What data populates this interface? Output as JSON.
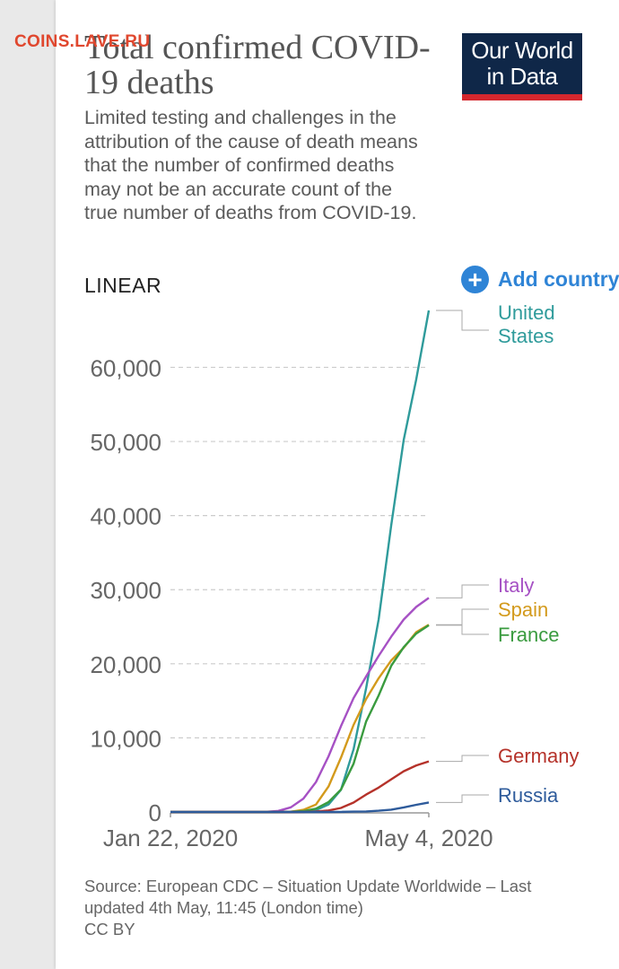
{
  "watermark": "COINS.LAVE.RU",
  "title": "Total confirmed COVID-19 deaths",
  "subtitle": "Limited testing and challenges in the attribution of the cause of death means that the number of confirmed deaths may not be an accurate count of the true number of deaths from COVID-19.",
  "logo": {
    "line1": "Our World",
    "line2": "in Data"
  },
  "scale_toggle": "LINEAR",
  "add_country": {
    "label": "Add country",
    "icon": "plus-circle-icon"
  },
  "source": "Source: European CDC – Situation Update Worldwide – Last updated 4th May, 11:45 (London time)",
  "license": "CC BY",
  "colors": {
    "accent": "#2f84d6",
    "logo_bg": "#0f2748",
    "logo_bar": "#d4272e"
  },
  "chart_data": {
    "type": "line",
    "title": "Total confirmed COVID-19 deaths",
    "x_start": "Jan 22, 2020",
    "x_end": "May 4, 2020",
    "x_ticks": [
      "Jan 22, 2020",
      "May 4, 2020"
    ],
    "ylim": [
      0,
      67682
    ],
    "y_ticks": [
      0,
      10000,
      20000,
      30000,
      40000,
      50000,
      60000
    ],
    "y_tick_labels": [
      "0",
      "10,000",
      "20,000",
      "30,000",
      "40,000",
      "50,000",
      "60,000"
    ],
    "grid": true,
    "legend": "right",
    "x": [
      "2020-01-22",
      "2020-02-29",
      "2020-03-05",
      "2020-03-10",
      "2020-03-15",
      "2020-03-20",
      "2020-03-25",
      "2020-03-30",
      "2020-04-04",
      "2020-04-09",
      "2020-04-14",
      "2020-04-19",
      "2020-04-24",
      "2020-04-29",
      "2020-05-04"
    ],
    "series": [
      {
        "name": "United States",
        "color": "#2f9b9b",
        "values": [
          0,
          1,
          11,
          26,
          60,
          260,
          1000,
          3000,
          8450,
          16700,
          26000,
          38700,
          50200,
          58400,
          67682
        ]
      },
      {
        "name": "Italy",
        "color": "#a651c4",
        "values": [
          0,
          21,
          148,
          631,
          1809,
          4032,
          7503,
          11591,
          15362,
          18279,
          21067,
          23660,
          25969,
          27682,
          28884
        ]
      },
      {
        "name": "Spain",
        "color": "#d39a1c",
        "values": [
          0,
          0,
          3,
          35,
          288,
          1002,
          3434,
          7340,
          11744,
          15238,
          18056,
          20453,
          22157,
          24275,
          25264
        ]
      },
      {
        "name": "France",
        "color": "#3a9b3f",
        "values": [
          0,
          2,
          6,
          33,
          127,
          450,
          1331,
          3024,
          6507,
          12210,
          15729,
          19718,
          22245,
          24087,
          25201
        ]
      },
      {
        "name": "Germany",
        "color": "#b5322a",
        "values": [
          0,
          0,
          0,
          2,
          12,
          67,
          206,
          541,
          1275,
          2349,
          3294,
          4404,
          5500,
          6288,
          6831
        ]
      },
      {
        "name": "Russia",
        "color": "#2e5b9b",
        "values": [
          0,
          0,
          0,
          0,
          0,
          1,
          3,
          17,
          43,
          76,
          170,
          313,
          615,
          972,
          1280
        ]
      }
    ]
  }
}
